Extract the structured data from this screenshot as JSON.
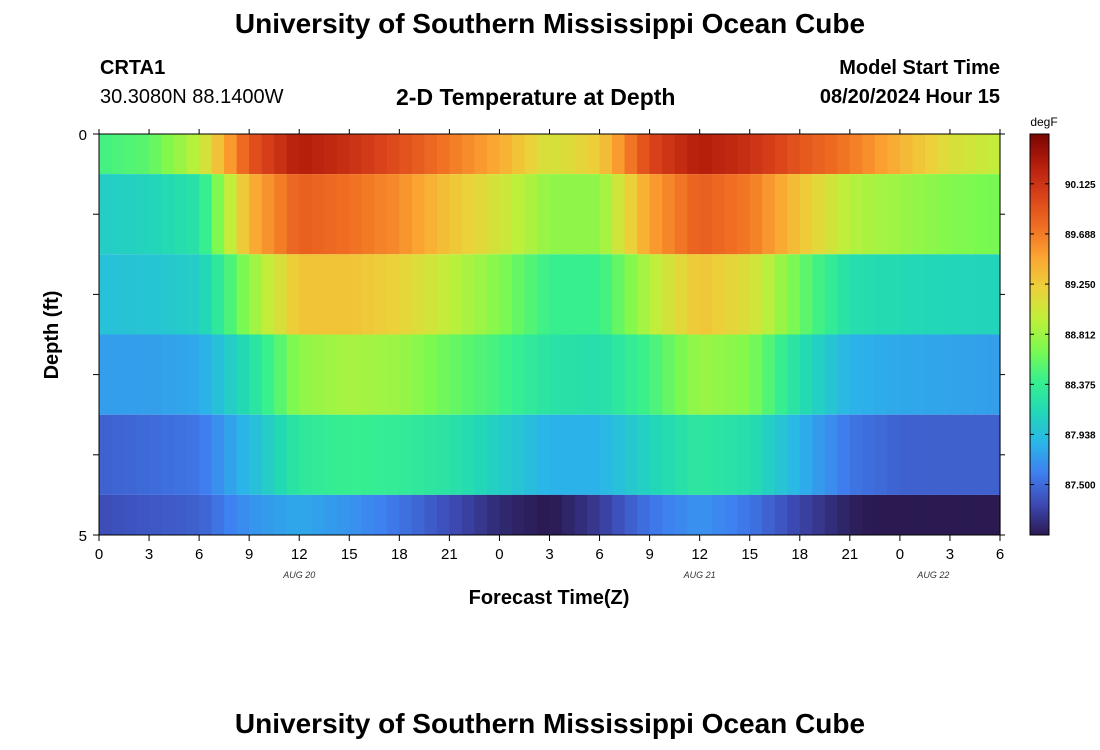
{
  "page": {
    "title": "University of Southern Mississippi Ocean Cube",
    "footer_title": "University of Southern Mississippi Ocean Cube",
    "station_id": "CRTA1",
    "coords": "30.3080N  88.1400W",
    "plot_title": "2-D Temperature at Depth",
    "model_start_label": "Model Start Time",
    "model_start_value": "08/20/2024 Hour 15"
  },
  "chart_data": {
    "type": "heatmap",
    "title": "2-D Temperature at Depth",
    "xlabel": "Forecast Time(Z)",
    "ylabel": "Depth (ft)",
    "x_ticks": [
      "0",
      "3",
      "6",
      "9",
      "12",
      "15",
      "18",
      "21",
      "0",
      "3",
      "6",
      "9",
      "12",
      "15",
      "18",
      "21",
      "0",
      "3",
      "6"
    ],
    "date_labels": [
      {
        "text": "AUG 20",
        "tick_index": 4
      },
      {
        "text": "AUG 21",
        "tick_index": 12
      },
      {
        "text": "AUG 22",
        "tick_index": 16.67
      }
    ],
    "y_tick_labels": [
      "0",
      "5"
    ],
    "ylim": [
      0,
      5
    ],
    "x_hours": [
      0,
      54
    ],
    "depth_bands_ft": [
      [
        0,
        0.5
      ],
      [
        0.5,
        1.5
      ],
      [
        1.5,
        2.5
      ],
      [
        2.5,
        3.5
      ],
      [
        3.5,
        4.5
      ],
      [
        4.5,
        5
      ]
    ],
    "time_hours": [
      0,
      3,
      6,
      9,
      12,
      15,
      18,
      21,
      24,
      27,
      30,
      33,
      36,
      39,
      42,
      45,
      48,
      51,
      54
    ],
    "values_degF": [
      [
        88.45,
        88.55,
        88.95,
        89.9,
        90.3,
        90.15,
        89.95,
        89.7,
        89.45,
        89.05,
        89.25,
        90.0,
        90.3,
        90.15,
        89.9,
        89.7,
        89.4,
        89.1,
        88.95
      ],
      [
        88.05,
        88.1,
        88.25,
        89.4,
        89.85,
        89.75,
        89.6,
        89.3,
        89.05,
        88.75,
        88.75,
        89.5,
        89.85,
        89.7,
        89.3,
        88.9,
        88.8,
        88.7,
        88.65
      ],
      [
        87.95,
        87.98,
        88.05,
        88.75,
        89.3,
        89.3,
        89.2,
        88.95,
        88.7,
        88.4,
        88.4,
        88.9,
        89.3,
        89.1,
        88.6,
        88.2,
        88.15,
        88.12,
        88.1
      ],
      [
        87.75,
        87.75,
        87.8,
        88.2,
        88.75,
        88.85,
        88.8,
        88.6,
        88.45,
        88.25,
        88.2,
        88.45,
        88.8,
        88.7,
        88.2,
        87.85,
        87.8,
        87.78,
        87.75
      ],
      [
        87.45,
        87.5,
        87.55,
        87.9,
        88.3,
        88.4,
        88.35,
        88.25,
        88.05,
        87.85,
        87.85,
        88.1,
        88.3,
        88.2,
        87.85,
        87.55,
        87.45,
        87.45,
        87.45
      ],
      [
        87.35,
        87.4,
        87.45,
        87.7,
        87.8,
        87.7,
        87.55,
        87.35,
        87.15,
        87.05,
        87.25,
        87.55,
        87.7,
        87.55,
        87.3,
        87.1,
        87.0,
        86.95,
        86.9
      ]
    ],
    "colorbar": {
      "unit": "degF",
      "ticks": [
        "87.500",
        "87.938",
        "88.375",
        "88.812",
        "89.250",
        "89.688",
        "90.125"
      ],
      "range": [
        87.06,
        90.56
      ],
      "colors": [
        "#2b1a52",
        "#3d49b3",
        "#3f7ff0",
        "#2ab6e8",
        "#22d8b6",
        "#37f08e",
        "#7cf94f",
        "#c0ef3a",
        "#ecd13a",
        "#fba532",
        "#f06e22",
        "#d9421a",
        "#b51e0c",
        "#7a0403"
      ]
    }
  }
}
